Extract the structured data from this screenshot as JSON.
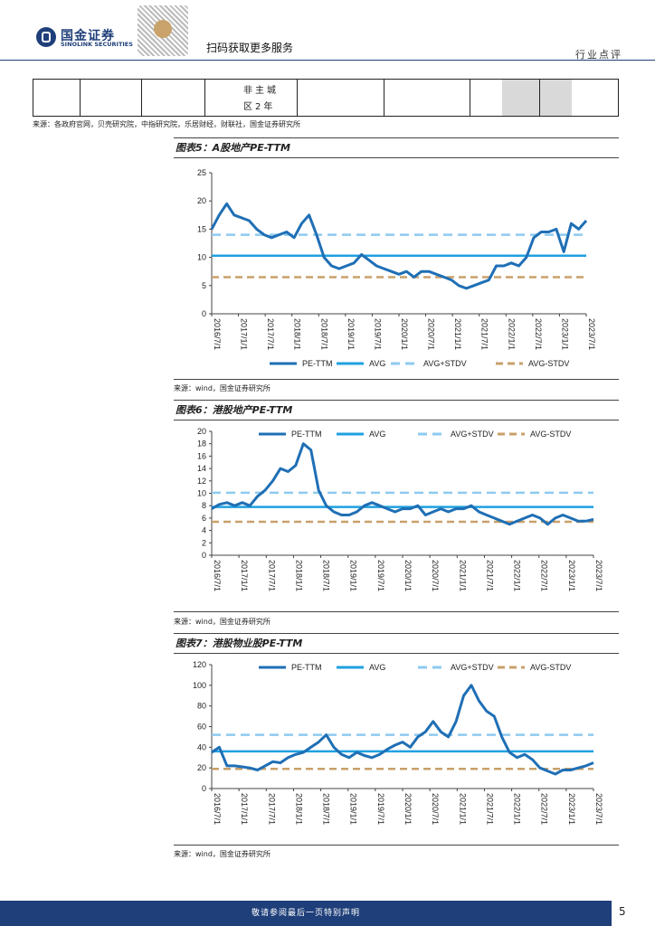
{
  "header": {
    "logo_cn": "国金证券",
    "logo_en": "SINOLINK SECURITIES",
    "qr_caption": "扫码获取更多服务",
    "section": "行业点评"
  },
  "table_fragment": {
    "cell_line1": "非主城",
    "cell_line2": "区2年"
  },
  "source1": "来源：各政府官网，贝壳研究院，中指研究院，乐居财经，财联社，国金证券研究所",
  "source2": "来源：wind，国金证券研究所",
  "source3": "来源：wind，国金证券研究所",
  "source4": "来源：wind，国金证券研究所",
  "colors": {
    "pe": "#1f6fb5",
    "avg": "#1fa0e0",
    "avg_plus": "#8ecaf0",
    "avg_minus": "#c8a06a",
    "navy": "#1f3f7a"
  },
  "legend_labels": [
    "PE-TTM",
    "AVG",
    "AVG+STDV",
    "AVG-STDV"
  ],
  "chart_data": [
    {
      "type": "line",
      "title": "图表5：A股地产PE-TTM",
      "xlabels": [
        "2016/7/1",
        "2017/1/1",
        "2017/7/1",
        "2018/1/1",
        "2018/7/1",
        "2019/1/1",
        "2019/7/1",
        "2020/1/1",
        "2020/7/1",
        "2021/1/1",
        "2021/7/1",
        "2022/1/1",
        "2022/7/1",
        "2023/1/1",
        "2023/7/1"
      ],
      "ylim": [
        0,
        25
      ],
      "yticks": [
        0,
        5,
        10,
        15,
        20,
        25
      ],
      "avg": 10.3,
      "avg_plus": 14.0,
      "avg_minus": 6.5,
      "legend_position": "bottom",
      "series": [
        {
          "values": [
            15.0,
            17.5,
            19.5,
            17.5,
            17.0,
            16.5,
            15.0,
            14.0,
            13.5,
            14.0,
            14.5,
            13.5,
            16.0,
            17.5,
            14.0,
            10.0,
            8.5,
            8.0,
            8.5,
            9.0,
            10.5,
            9.5,
            8.5,
            8.0,
            7.5,
            7.0,
            7.5,
            6.5,
            7.5,
            7.5,
            7.0,
            6.5,
            6.0,
            5.0,
            4.5,
            5.0,
            5.5,
            6.0,
            8.5,
            8.5,
            9.0,
            8.5,
            10.0,
            13.5,
            14.5,
            14.5,
            15.0,
            11.0,
            16.0,
            15.0,
            16.5
          ]
        }
      ]
    },
    {
      "type": "line",
      "title": "图表6：港股地产PE-TTM",
      "xlabels": [
        "2016/7/1",
        "2017/1/1",
        "2017/7/1",
        "2018/1/1",
        "2018/7/1",
        "2019/1/1",
        "2019/7/1",
        "2020/1/1",
        "2020/7/1",
        "2021/1/1",
        "2021/7/1",
        "2022/1/1",
        "2022/7/1",
        "2023/1/1",
        "2023/7/1"
      ],
      "ylim": [
        0,
        20
      ],
      "yticks": [
        0,
        2,
        4,
        6,
        8,
        10,
        12,
        14,
        16,
        18,
        20
      ],
      "avg": 7.8,
      "avg_plus": 10.1,
      "avg_minus": 5.4,
      "legend_position": "top",
      "series": [
        {
          "values": [
            7.5,
            8.2,
            8.5,
            8.0,
            8.5,
            8.0,
            9.5,
            10.5,
            12.0,
            14.0,
            13.5,
            14.5,
            18.0,
            17.0,
            10.5,
            8.0,
            7.0,
            6.5,
            6.5,
            7.0,
            8.0,
            8.5,
            8.0,
            7.5,
            7.0,
            7.5,
            7.5,
            8.0,
            6.5,
            7.0,
            7.5,
            7.0,
            7.5,
            7.5,
            8.0,
            7.0,
            6.5,
            6.0,
            5.5,
            5.0,
            5.5,
            6.0,
            6.5,
            6.0,
            5.0,
            6.0,
            6.5,
            6.0,
            5.5,
            5.5,
            5.8
          ]
        }
      ]
    },
    {
      "type": "line",
      "title": "图表7：港股物业股PE-TTM",
      "xlabels": [
        "2016/7/1",
        "2017/1/1",
        "2017/7/1",
        "2018/1/1",
        "2018/7/1",
        "2019/1/1",
        "2019/7/1",
        "2020/1/1",
        "2020/7/1",
        "2021/1/1",
        "2021/7/1",
        "2022/1/1",
        "2022/7/1",
        "2023/1/1",
        "2023/7/1"
      ],
      "ylim": [
        0,
        120
      ],
      "yticks": [
        0,
        20,
        40,
        60,
        80,
        100,
        120
      ],
      "avg": 36,
      "avg_plus": 52,
      "avg_minus": 19,
      "legend_position": "top",
      "series": [
        {
          "values": [
            35,
            40,
            22,
            22,
            21,
            20,
            18,
            22,
            26,
            25,
            30,
            33,
            35,
            40,
            45,
            52,
            40,
            33,
            30,
            35,
            32,
            30,
            33,
            38,
            42,
            45,
            40,
            50,
            55,
            65,
            55,
            50,
            65,
            90,
            100,
            85,
            75,
            70,
            50,
            35,
            30,
            33,
            28,
            20,
            17,
            14,
            18,
            18,
            20,
            22,
            25
          ]
        }
      ]
    }
  ],
  "footer": {
    "text": "敬请参阅最后一页特别声明",
    "page": "5"
  }
}
